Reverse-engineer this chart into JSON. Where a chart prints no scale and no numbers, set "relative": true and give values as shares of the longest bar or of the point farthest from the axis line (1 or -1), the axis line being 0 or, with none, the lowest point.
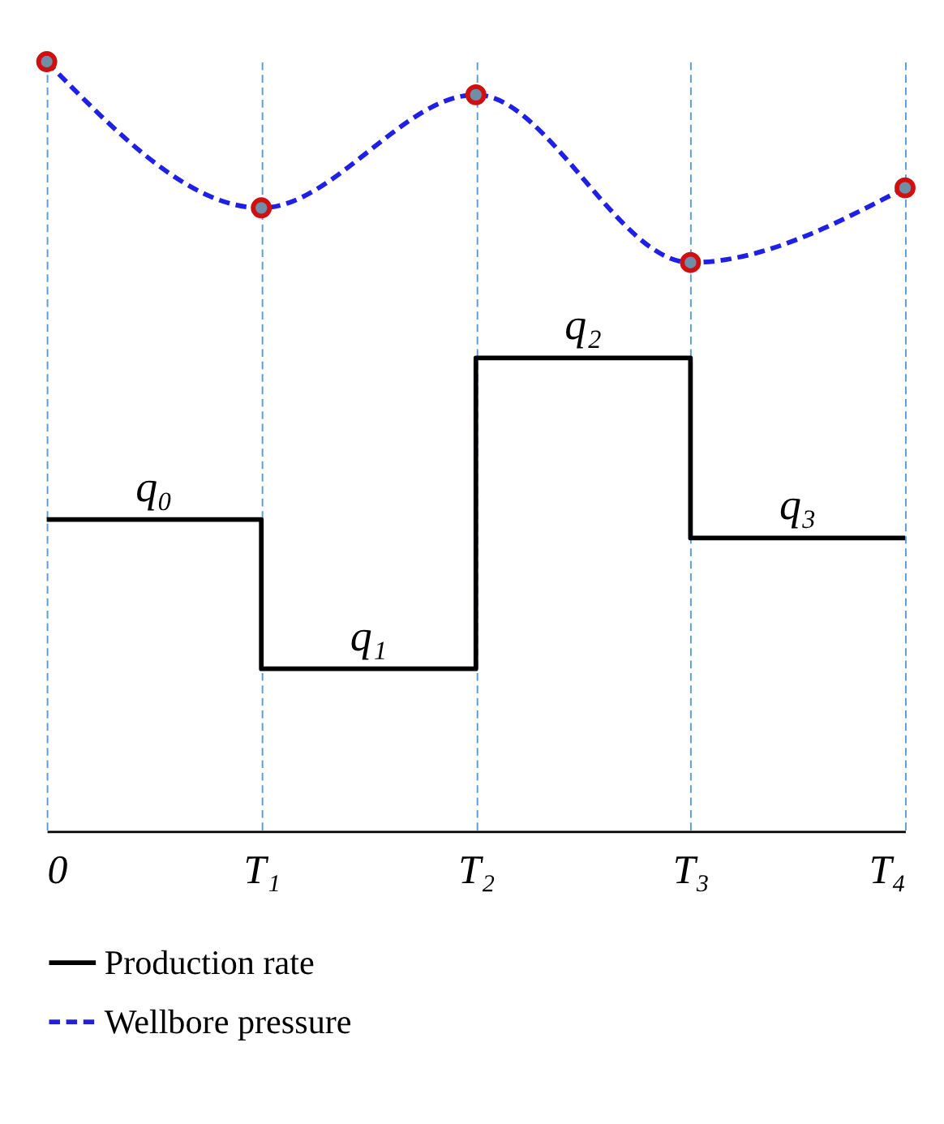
{
  "chart_data": {
    "type": "line",
    "relative": true,
    "categories": [
      "0",
      "T₁",
      "T₂",
      "T₃",
      "T₄"
    ],
    "series": [
      {
        "name": "Production rate",
        "type": "step",
        "color": "#000000",
        "line_style": "solid",
        "marker": "none",
        "values": [
          0.405,
          0.211,
          0.615,
          0.381,
          0.381
        ]
      },
      {
        "name": "Wellbore pressure",
        "color": "#1f1fe6",
        "line_style": "dashed",
        "marker": "none",
        "values": [
          1.0,
          0.81,
          0.957,
          0.739,
          0.836
        ]
      },
      {
        "type": "scatter",
        "color": "#6f8fa8",
        "marker": "circle",
        "values": [
          1.0,
          0.81,
          0.957,
          0.739,
          0.836
        ]
      }
    ],
    "annotations": [
      {
        "text": "q₀",
        "y": 0.405
      },
      {
        "text": "q₁",
        "y": 0.211
      },
      {
        "text": "q₂",
        "y": 0.615
      },
      {
        "text": "q₃",
        "y": 0.381
      }
    ],
    "grid": "x",
    "legend": "bottom"
  }
}
